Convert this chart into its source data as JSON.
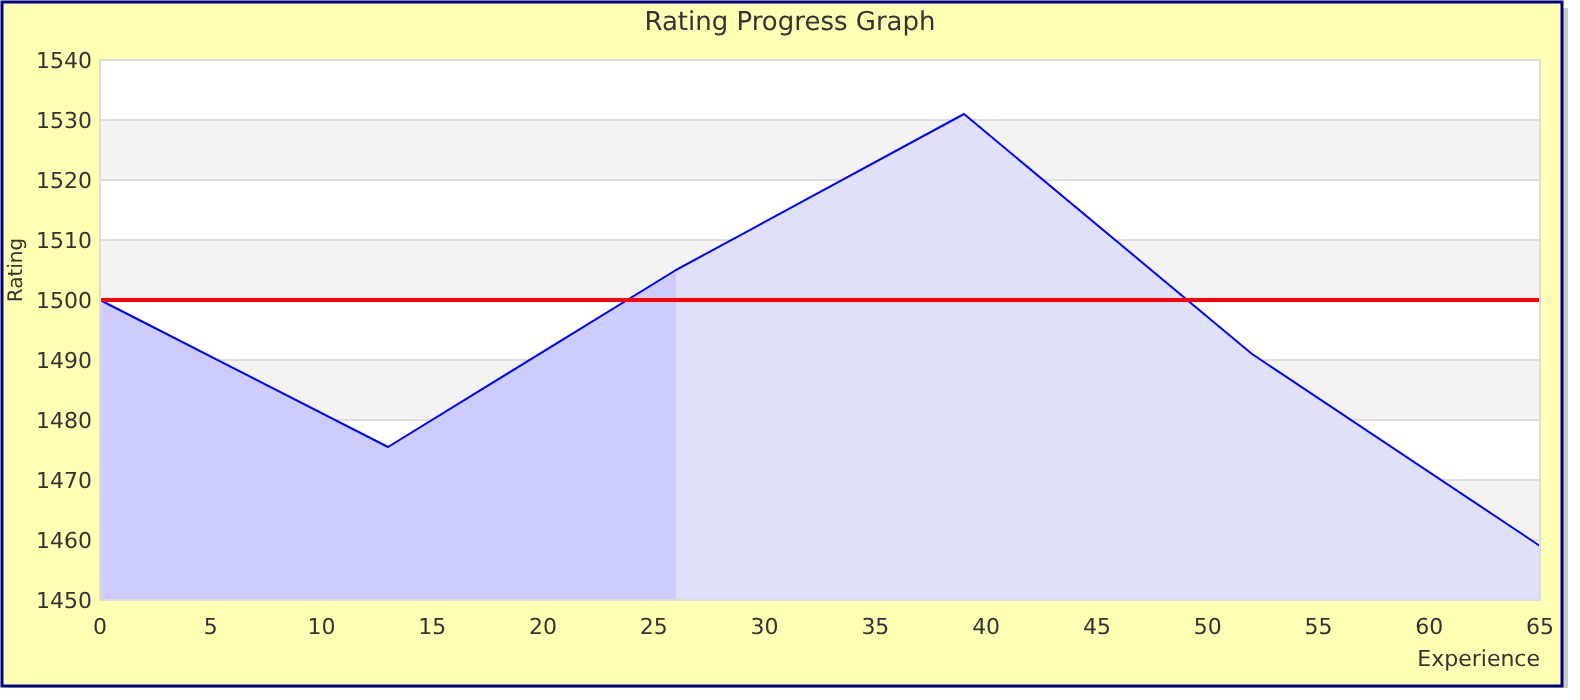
{
  "chart_data": {
    "type": "area",
    "title": "Rating Progress Graph",
    "xlabel": "Experience",
    "ylabel": "Rating",
    "xlim": [
      0,
      65
    ],
    "xticks": [
      0,
      5,
      10,
      15,
      20,
      25,
      30,
      35,
      40,
      45,
      50,
      55,
      60,
      65
    ],
    "ylim": [
      1450,
      1540
    ],
    "yticks": [
      1450,
      1460,
      1470,
      1480,
      1490,
      1500,
      1510,
      1520,
      1530,
      1540
    ],
    "grid": "y",
    "series": [
      {
        "color": "#ccccff",
        "x": [
          0,
          13,
          26
        ],
        "values": [
          1500,
          1475.5,
          1505
        ]
      },
      {
        "color": "#e0e0fa",
        "x": [
          26,
          39,
          52,
          65
        ],
        "values": [
          1505,
          1531,
          1491,
          1459
        ]
      },
      {
        "type": "line",
        "color": "#0000ff",
        "x": [
          0,
          13,
          26,
          39,
          52,
          65
        ],
        "values": [
          1500,
          1475.5,
          1505,
          1531,
          1491,
          1459
        ]
      }
    ],
    "ref_lines": [
      {
        "axis": "y",
        "value": 1500,
        "color": "#ff0000"
      }
    ]
  }
}
